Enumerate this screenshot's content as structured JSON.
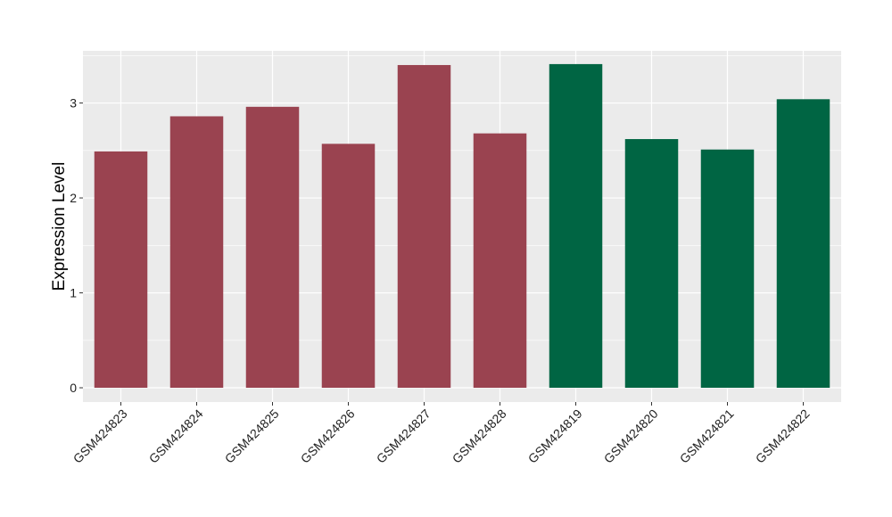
{
  "chart_data": {
    "type": "bar",
    "title": "",
    "xlabel": "",
    "ylabel": "Expression Level",
    "ylim": [
      -0.15,
      3.55
    ],
    "yticks": [
      0,
      1,
      2,
      3
    ],
    "ytick_labels": [
      "0",
      "1",
      "2",
      "3"
    ],
    "grid": true,
    "legend": "none",
    "categories": [
      "GSM424823",
      "GSM424824",
      "GSM424825",
      "GSM424826",
      "GSM424827",
      "GSM424828",
      "GSM424819",
      "GSM424820",
      "GSM424821",
      "GSM424822"
    ],
    "values": [
      2.49,
      2.86,
      2.96,
      2.57,
      3.4,
      2.68,
      3.41,
      2.62,
      2.51,
      3.04
    ],
    "colors": [
      "#9a4350",
      "#9a4350",
      "#9a4350",
      "#9a4350",
      "#9a4350",
      "#9a4350",
      "#006543",
      "#006543",
      "#006543",
      "#006543"
    ],
    "panel_background": "#ebebeb",
    "gridline_color": "#ffffff"
  }
}
